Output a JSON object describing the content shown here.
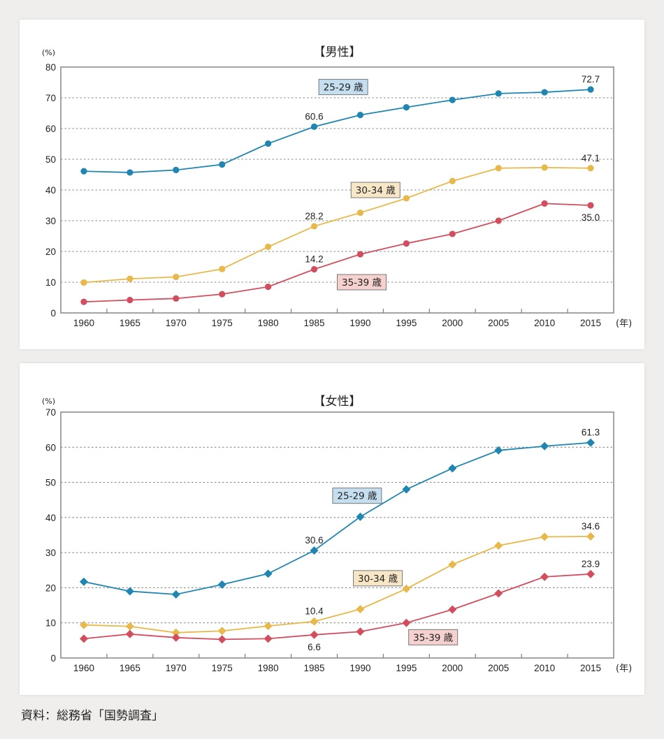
{
  "source_note": "資料：総務省「国勢調査」",
  "chart_data": [
    {
      "type": "line",
      "title": "【男性】",
      "xlabel": "(年)",
      "ylabel": "(%)",
      "ylim": [
        0,
        80
      ],
      "yticks": [
        0,
        10,
        20,
        30,
        40,
        50,
        60,
        70,
        80
      ],
      "grid": true,
      "marker": "circle",
      "x": [
        "1960",
        "1965",
        "1970",
        "1975",
        "1980",
        "1985",
        "1990",
        "1995",
        "2000",
        "2005",
        "2010",
        "2015"
      ],
      "series": [
        {
          "name": "25-29 歳",
          "color": "#1f86b2",
          "tag_fill": "#c5dff0",
          "values": [
            46.1,
            45.7,
            46.5,
            48.3,
            55.1,
            60.6,
            64.4,
            66.9,
            69.3,
            71.4,
            71.8,
            72.7
          ],
          "labels": [
            {
              "index": 5,
              "text": "60.6",
              "pos": "above"
            },
            {
              "index": 11,
              "text": "72.7",
              "pos": "above"
            }
          ],
          "tag": {
            "x_index": 5.6,
            "y": 73.5
          }
        },
        {
          "name": "30-34 歳",
          "color": "#e8b84a",
          "tag_fill": "#f8e7c6",
          "values": [
            9.9,
            11.1,
            11.7,
            14.3,
            21.5,
            28.2,
            32.6,
            37.3,
            42.9,
            47.1,
            47.3,
            47.1
          ],
          "labels": [
            {
              "index": 5,
              "text": "28.2",
              "pos": "above"
            },
            {
              "index": 11,
              "text": "47.1",
              "pos": "above"
            }
          ],
          "tag": {
            "x_index": 6.3,
            "y": 40
          }
        },
        {
          "name": "35-39 歳",
          "color": "#d24e5e",
          "tag_fill": "#f5d2cf",
          "values": [
            3.6,
            4.2,
            4.7,
            6.1,
            8.5,
            14.2,
            19.1,
            22.6,
            25.7,
            30.0,
            35.6,
            35.0
          ],
          "labels": [
            {
              "index": 5,
              "text": "14.2",
              "pos": "above"
            },
            {
              "index": 11,
              "text": "35.0",
              "pos": "below"
            }
          ],
          "tag": {
            "x_index": 6.0,
            "y": 10
          }
        }
      ]
    },
    {
      "type": "line",
      "title": "【女性】",
      "xlabel": "(年)",
      "ylabel": "(%)",
      "ylim": [
        0,
        70
      ],
      "yticks": [
        0,
        10,
        20,
        30,
        40,
        50,
        60,
        70
      ],
      "grid": true,
      "marker": "diamond",
      "x": [
        "1960",
        "1965",
        "1970",
        "1975",
        "1980",
        "1985",
        "1990",
        "1995",
        "2000",
        "2005",
        "2010",
        "2015"
      ],
      "series": [
        {
          "name": "25-29 歳",
          "color": "#1f86b2",
          "tag_fill": "#c5dff0",
          "values": [
            21.7,
            19.0,
            18.1,
            20.9,
            24.0,
            30.6,
            40.2,
            48.0,
            54.0,
            59.1,
            60.3,
            61.3
          ],
          "labels": [
            {
              "index": 5,
              "text": "30.6",
              "pos": "above"
            },
            {
              "index": 11,
              "text": "61.3",
              "pos": "above"
            }
          ],
          "tag": {
            "x_index": 5.9,
            "y": 46.2
          }
        },
        {
          "name": "30-34 歳",
          "color": "#e8b84a",
          "tag_fill": "#f8e7c6",
          "values": [
            9.4,
            9.0,
            7.2,
            7.7,
            9.1,
            10.4,
            13.9,
            19.7,
            26.6,
            32.0,
            34.5,
            34.6
          ],
          "labels": [
            {
              "index": 5,
              "text": "10.4",
              "pos": "above"
            },
            {
              "index": 11,
              "text": "34.6",
              "pos": "above"
            }
          ],
          "tag": {
            "x_index": 6.35,
            "y": 22.7
          }
        },
        {
          "name": "35-39 歳",
          "color": "#d24e5e",
          "tag_fill": "#f5d2cf",
          "values": [
            5.5,
            6.8,
            5.8,
            5.3,
            5.5,
            6.6,
            7.5,
            10.0,
            13.8,
            18.4,
            23.1,
            23.9
          ],
          "labels": [
            {
              "index": 5,
              "text": "6.6",
              "pos": "below"
            },
            {
              "index": 11,
              "text": "23.9",
              "pos": "above"
            }
          ],
          "tag": {
            "x_index": 7.55,
            "y": 5.9
          }
        }
      ]
    }
  ]
}
